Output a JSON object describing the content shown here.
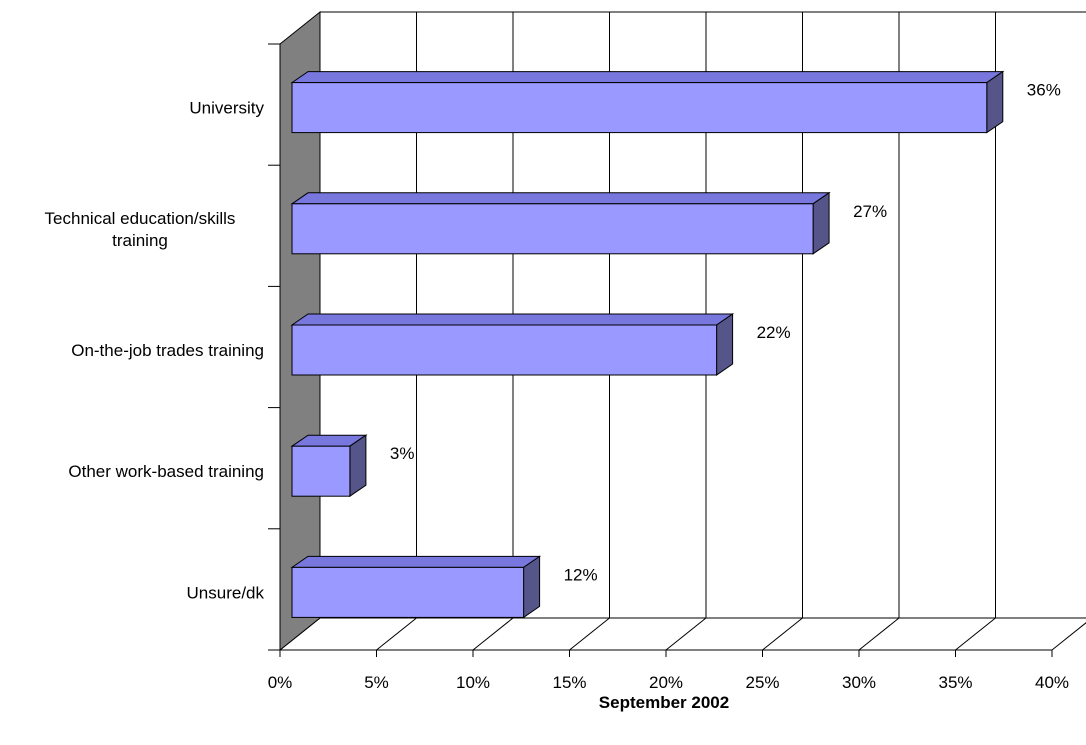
{
  "chart_data": {
    "type": "bar",
    "orientation": "horizontal",
    "style": "3d",
    "categories": [
      "University",
      "Technical education/skills training",
      "On-the-job trades training",
      "Other work-based training",
      "Unsure/dk"
    ],
    "category_lines": [
      [
        "University"
      ],
      [
        "Technical education/skills",
        "training"
      ],
      [
        "On-the-job trades training"
      ],
      [
        "Other work-based training"
      ],
      [
        "Unsure/dk"
      ]
    ],
    "values": [
      36,
      27,
      22,
      3,
      12
    ],
    "value_labels": [
      "36%",
      "27%",
      "22%",
      "3%",
      "12%"
    ],
    "xlabel": "September 2002",
    "xlim": [
      0,
      40
    ],
    "xticks": [
      0,
      5,
      10,
      15,
      20,
      25,
      30,
      35,
      40
    ],
    "xtick_labels": [
      "0%",
      "5%",
      "10%",
      "15%",
      "20%",
      "25%",
      "30%",
      "35%",
      "40%"
    ],
    "grid": "vertical",
    "legend": "none",
    "colors": {
      "bar_front": "#9999ff",
      "bar_top": "#7777dd",
      "bar_side": "#55558a",
      "wall": "#808080",
      "edge": "#000000"
    }
  }
}
